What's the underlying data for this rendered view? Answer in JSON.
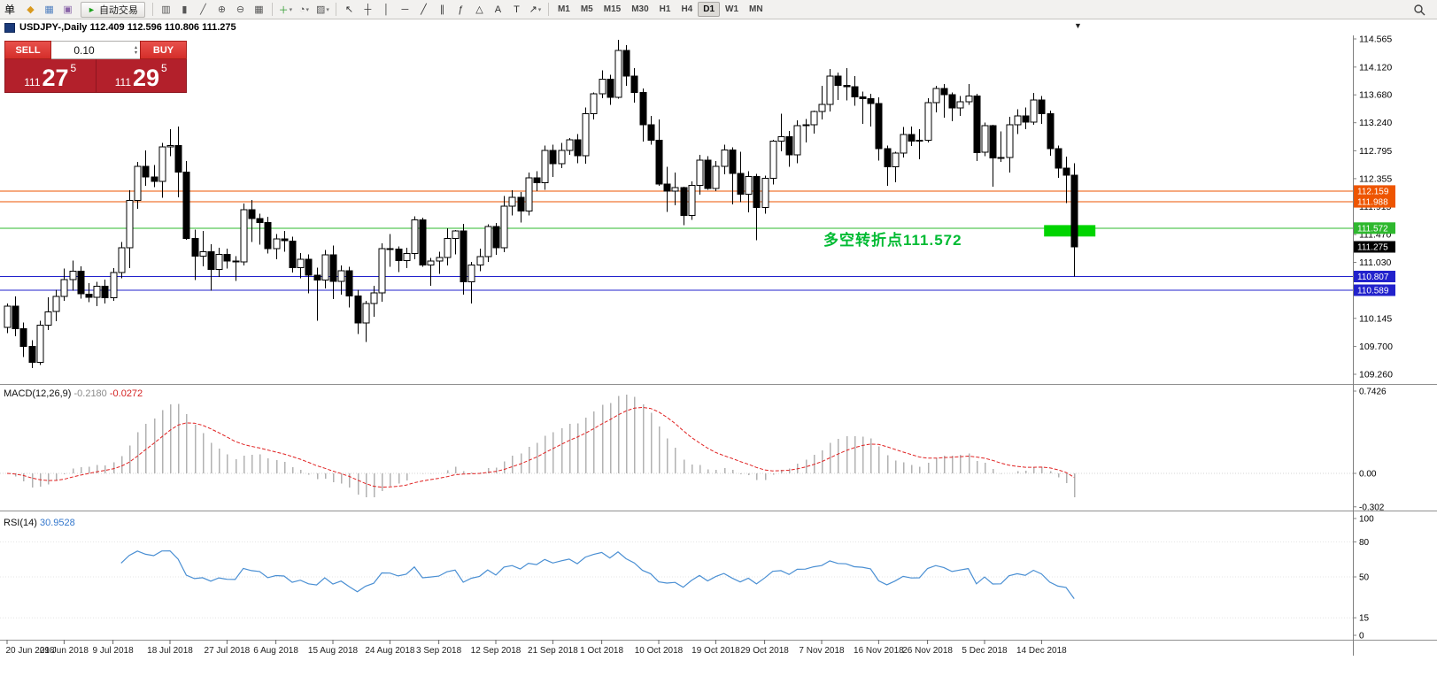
{
  "toolbar": {
    "menu_label": "单",
    "dropdown_glyph": "▾",
    "autotrading": {
      "label": "自动交易",
      "play_glyph": "►"
    },
    "icon_groups": [
      {
        "name": "file-group",
        "items": [
          {
            "name": "new-order-icon",
            "glyph": "◆",
            "color": "#d99a1f"
          },
          {
            "name": "charts-icon",
            "glyph": "▦",
            "color": "#4f7fbf"
          },
          {
            "name": "market-watch-icon",
            "glyph": "▣",
            "color": "#8a65a8"
          }
        ]
      },
      {
        "name": "chart-type-group",
        "items": [
          {
            "name": "bar-chart-icon",
            "glyph": "▥",
            "color": "#555555"
          },
          {
            "name": "candlestick-chart-icon",
            "glyph": "▮",
            "color": "#555555"
          },
          {
            "name": "line-chart-icon",
            "glyph": "╱",
            "color": "#555555"
          },
          {
            "name": "zoom-in-icon",
            "glyph": "⊕",
            "color": "#555555"
          },
          {
            "name": "zoom-out-icon",
            "glyph": "⊖",
            "color": "#555555"
          },
          {
            "name": "tile-windows-icon",
            "glyph": "▦",
            "color": "#555555"
          }
        ]
      },
      {
        "name": "chart-manage-group",
        "items": [
          {
            "name": "new-chart-icon",
            "glyph": "＋",
            "color": "#2c9c2c",
            "arrow": true
          },
          {
            "name": "periods-icon",
            "glyph": "◔",
            "color": "#555555",
            "arrow": true
          },
          {
            "name": "templates-icon",
            "glyph": "▨",
            "color": "#555555",
            "arrow": true
          }
        ]
      },
      {
        "name": "drawing-group",
        "items": [
          {
            "name": "cursor-icon",
            "glyph": "↖",
            "color": "#333333"
          },
          {
            "name": "crosshair-icon",
            "glyph": "┼",
            "color": "#333333"
          },
          {
            "name": "vertical-line-icon",
            "glyph": "│",
            "color": "#333333"
          },
          {
            "name": "horizontal-line-icon",
            "glyph": "─",
            "color": "#333333"
          },
          {
            "name": "trendline-icon",
            "glyph": "╱",
            "color": "#333333"
          },
          {
            "name": "channel-icon",
            "glyph": "∥",
            "color": "#333333"
          },
          {
            "name": "fibonacci-icon",
            "glyph": "ƒ",
            "color": "#333333"
          },
          {
            "name": "shapes-icon",
            "glyph": "△",
            "color": "#333333"
          },
          {
            "name": "text-icon",
            "glyph": "A",
            "color": "#333333"
          },
          {
            "name": "label-icon",
            "glyph": "T",
            "color": "#333333"
          },
          {
            "name": "arrows-icon",
            "glyph": "↗",
            "color": "#333333",
            "arrow": true
          }
        ]
      }
    ],
    "timeframes": {
      "options": [
        "M1",
        "M5",
        "M15",
        "M30",
        "H1",
        "H4",
        "D1",
        "W1",
        "MN"
      ],
      "active": "D1"
    }
  },
  "chart": {
    "title": "USDJPY-,Daily  112.409 112.596 110.806 111.275",
    "shift_marker": "▼"
  },
  "one_click": {
    "sell_label": "SELL",
    "buy_label": "BUY",
    "volume": "0.10",
    "spin_up": "▴",
    "spin_down": "▾",
    "bid": {
      "prefix": "111",
      "big": "27",
      "sup": "5"
    },
    "ask": {
      "prefix": "111",
      "big": "29",
      "sup": "5"
    }
  },
  "annotation": {
    "text": "多空转折点111.572",
    "color": "#00bb33"
  },
  "indicators": {
    "macd": {
      "name": "MACD(12,26,9)",
      "value_main": "-0.2180",
      "value_signal": "-0.0272"
    },
    "rsi": {
      "name": "RSI(14)",
      "value": "30.9528"
    }
  },
  "chart_data": {
    "type": "candlestick",
    "symbol": "USDJPY-",
    "timeframe": "Daily",
    "last_ohlc": {
      "open": 112.409,
      "high": 112.596,
      "low": 110.806,
      "close": 111.275
    },
    "y_ticks": [
      114.565,
      114.12,
      113.68,
      113.24,
      112.795,
      112.355,
      111.915,
      111.47,
      111.03,
      110.585,
      110.145,
      109.7,
      109.26
    ],
    "h_lines": [
      {
        "price": 112.159,
        "label": "112.159",
        "color": "#ee5500"
      },
      {
        "price": 111.988,
        "label": "111.988",
        "color": "#ee5500"
      },
      {
        "price": 111.572,
        "label": "111.572",
        "color": "#2eb82e"
      },
      {
        "price": 110.807,
        "label": "110.807",
        "color": "#2222cc"
      },
      {
        "price": 110.589,
        "label": "110.589",
        "color": "#2222cc"
      }
    ],
    "price_tags": [
      {
        "price": 112.159,
        "label": "112.159",
        "color": "#ee5500"
      },
      {
        "price": 111.988,
        "label": "111.988",
        "color": "#ee5500"
      },
      {
        "price": 111.572,
        "label": "111.572",
        "color": "#2eb82e"
      },
      {
        "price": 111.275,
        "label": "111.275",
        "color": "#000000"
      },
      {
        "price": 110.807,
        "label": "110.807",
        "color": "#2222cc"
      },
      {
        "price": 110.589,
        "label": "110.589",
        "color": "#2222cc"
      }
    ],
    "highlight_rect": {
      "bar_start": 127.3,
      "bar_end": 133.6,
      "price_top": 111.62,
      "price_bottom": 111.44,
      "color": "#00d400"
    },
    "date_labels": [
      {
        "label": "20 Jun 2018",
        "bar": 0
      },
      {
        "label": "29 Jun 2018",
        "bar": 7
      },
      {
        "label": "9 Jul 2018",
        "bar": 13
      },
      {
        "label": "18 Jul 2018",
        "bar": 20
      },
      {
        "label": "27 Jul 2018",
        "bar": 27
      },
      {
        "label": "6 Aug 2018",
        "bar": 33
      },
      {
        "label": "15 Aug 2018",
        "bar": 40
      },
      {
        "label": "24 Aug 2018",
        "bar": 47
      },
      {
        "label": "3 Sep 2018",
        "bar": 53
      },
      {
        "label": "12 Sep 2018",
        "bar": 60
      },
      {
        "label": "21 Sep 2018",
        "bar": 67
      },
      {
        "label": "1 Oct 2018",
        "bar": 73
      },
      {
        "label": "10 Oct 2018",
        "bar": 80
      },
      {
        "label": "19 Oct 2018",
        "bar": 87
      },
      {
        "label": "29 Oct 2018",
        "bar": 93
      },
      {
        "label": "7 Nov 2018",
        "bar": 100
      },
      {
        "label": "16 Nov 2018",
        "bar": 107
      },
      {
        "label": "26 Nov 2018",
        "bar": 113
      },
      {
        "label": "5 Dec 2018",
        "bar": 120
      },
      {
        "label": "14 Dec 2018",
        "bar": 127
      }
    ],
    "macd_axis": [
      {
        "v": 0.7426,
        "label": "0.7426"
      },
      {
        "v": 0,
        "label": "0.00"
      },
      {
        "v": -0.302,
        "label": "-0.302"
      }
    ],
    "rsi_axis": [
      {
        "v": 100,
        "label": "100"
      },
      {
        "v": 80,
        "label": "80"
      },
      {
        "v": 50,
        "label": "50"
      },
      {
        "v": 15,
        "label": "15"
      },
      {
        "v": 0,
        "label": "0"
      }
    ],
    "rsi_levels": [
      80,
      50,
      15
    ],
    "candles": [
      [
        110.0,
        110.38,
        109.91,
        110.34
      ],
      [
        110.34,
        110.49,
        109.86,
        109.98
      ],
      [
        109.98,
        110.08,
        109.53,
        109.7
      ],
      [
        109.7,
        109.8,
        109.36,
        109.45
      ],
      [
        109.45,
        110.11,
        109.41,
        110.04
      ],
      [
        110.04,
        110.48,
        109.96,
        110.25
      ],
      [
        110.25,
        110.6,
        110.1,
        110.49
      ],
      [
        110.49,
        110.93,
        110.42,
        110.76
      ],
      [
        110.76,
        111.06,
        110.58,
        110.89
      ],
      [
        110.89,
        110.97,
        110.46,
        110.53
      ],
      [
        110.53,
        110.7,
        110.4,
        110.48
      ],
      [
        110.48,
        110.72,
        110.34,
        110.65
      ],
      [
        110.65,
        110.76,
        110.38,
        110.47
      ],
      [
        110.47,
        110.94,
        110.42,
        110.87
      ],
      [
        110.87,
        111.35,
        110.78,
        111.26
      ],
      [
        111.26,
        112.17,
        110.94,
        112.01
      ],
      [
        112.01,
        112.62,
        111.88,
        112.55
      ],
      [
        112.55,
        112.8,
        112.24,
        112.38
      ],
      [
        112.38,
        112.57,
        112.22,
        112.31
      ],
      [
        112.31,
        112.92,
        112.05,
        112.86
      ],
      [
        112.86,
        113.14,
        112.71,
        112.88
      ],
      [
        112.88,
        113.18,
        112.06,
        112.46
      ],
      [
        112.46,
        112.63,
        111.39,
        111.41
      ],
      [
        111.41,
        111.55,
        110.75,
        111.13
      ],
      [
        111.13,
        111.53,
        110.97,
        111.2
      ],
      [
        111.2,
        111.32,
        110.58,
        110.92
      ],
      [
        110.92,
        111.26,
        110.8,
        111.16
      ],
      [
        111.16,
        111.25,
        110.93,
        111.05
      ],
      [
        111.05,
        111.13,
        110.74,
        111.04
      ],
      [
        111.04,
        111.96,
        110.98,
        111.86
      ],
      [
        111.86,
        112.02,
        111.35,
        111.72
      ],
      [
        111.72,
        111.8,
        111.31,
        111.66
      ],
      [
        111.66,
        111.75,
        111.17,
        111.25
      ],
      [
        111.25,
        111.48,
        111.08,
        111.4
      ],
      [
        111.4,
        111.53,
        111.2,
        111.37
      ],
      [
        111.37,
        111.44,
        110.87,
        110.95
      ],
      [
        110.95,
        111.18,
        110.78,
        111.08
      ],
      [
        111.08,
        111.16,
        110.54,
        110.83
      ],
      [
        110.83,
        110.95,
        110.11,
        110.75
      ],
      [
        110.75,
        111.23,
        110.62,
        111.15
      ],
      [
        111.15,
        111.3,
        110.45,
        110.73
      ],
      [
        110.73,
        110.98,
        110.52,
        110.9
      ],
      [
        110.9,
        110.96,
        110.32,
        110.5
      ],
      [
        110.5,
        110.6,
        109.9,
        110.07
      ],
      [
        110.07,
        110.42,
        109.77,
        110.38
      ],
      [
        110.38,
        110.66,
        110.17,
        110.55
      ],
      [
        110.55,
        111.33,
        110.41,
        111.25
      ],
      [
        111.25,
        111.48,
        110.96,
        111.24
      ],
      [
        111.24,
        111.28,
        110.88,
        111.06
      ],
      [
        111.06,
        111.26,
        110.94,
        111.17
      ],
      [
        111.17,
        111.76,
        111.08,
        111.7
      ],
      [
        111.7,
        111.74,
        110.96,
        110.99
      ],
      [
        110.99,
        111.1,
        110.66,
        111.05
      ],
      [
        111.05,
        111.2,
        110.85,
        111.11
      ],
      [
        111.11,
        111.57,
        110.98,
        111.41
      ],
      [
        111.41,
        111.54,
        111.16,
        111.53
      ],
      [
        111.53,
        111.64,
        110.52,
        110.72
      ],
      [
        110.72,
        111.04,
        110.38,
        110.99
      ],
      [
        110.99,
        111.25,
        110.89,
        111.12
      ],
      [
        111.12,
        111.63,
        111.04,
        111.6
      ],
      [
        111.6,
        111.65,
        111.15,
        111.26
      ],
      [
        111.26,
        112.08,
        111.19,
        111.92
      ],
      [
        111.92,
        112.17,
        111.77,
        112.06
      ],
      [
        112.06,
        112.14,
        111.66,
        111.84
      ],
      [
        111.84,
        112.45,
        111.77,
        112.37
      ],
      [
        112.37,
        112.47,
        112.16,
        112.29
      ],
      [
        112.29,
        112.88,
        112.18,
        112.8
      ],
      [
        112.8,
        112.89,
        112.38,
        112.59
      ],
      [
        112.59,
        112.92,
        112.52,
        112.8
      ],
      [
        112.8,
        113.0,
        112.73,
        112.97
      ],
      [
        112.97,
        113.06,
        112.6,
        112.72
      ],
      [
        112.72,
        113.48,
        112.59,
        113.38
      ],
      [
        113.38,
        113.72,
        113.29,
        113.7
      ],
      [
        113.7,
        114.07,
        113.63,
        113.93
      ],
      [
        113.93,
        114.0,
        113.52,
        113.64
      ],
      [
        113.64,
        114.55,
        113.62,
        114.38
      ],
      [
        114.38,
        114.47,
        113.82,
        113.98
      ],
      [
        113.98,
        114.1,
        113.56,
        113.72
      ],
      [
        113.72,
        113.78,
        112.94,
        113.21
      ],
      [
        113.21,
        113.35,
        112.89,
        112.96
      ],
      [
        112.96,
        113.29,
        112.24,
        112.27
      ],
      [
        112.27,
        112.54,
        111.83,
        112.16
      ],
      [
        112.16,
        112.45,
        111.93,
        112.21
      ],
      [
        112.21,
        112.23,
        111.62,
        111.77
      ],
      [
        111.77,
        112.31,
        111.7,
        112.25
      ],
      [
        112.25,
        112.73,
        112.1,
        112.65
      ],
      [
        112.65,
        112.71,
        112.18,
        112.2
      ],
      [
        112.2,
        112.63,
        112.16,
        112.55
      ],
      [
        112.55,
        112.89,
        112.42,
        112.81
      ],
      [
        112.81,
        112.85,
        111.95,
        112.44
      ],
      [
        112.44,
        112.78,
        111.98,
        112.11
      ],
      [
        112.11,
        112.47,
        111.82,
        112.39
      ],
      [
        112.39,
        112.43,
        111.38,
        111.9
      ],
      [
        111.9,
        112.4,
        111.8,
        112.36
      ],
      [
        112.36,
        112.97,
        112.26,
        112.95
      ],
      [
        112.95,
        113.38,
        112.79,
        113.02
      ],
      [
        113.02,
        113.11,
        112.54,
        112.73
      ],
      [
        112.73,
        113.28,
        112.6,
        113.19
      ],
      [
        113.19,
        113.3,
        112.93,
        113.21
      ],
      [
        113.21,
        113.43,
        113.07,
        113.42
      ],
      [
        113.42,
        113.82,
        113.29,
        113.53
      ],
      [
        113.53,
        114.09,
        113.42,
        113.98
      ],
      [
        113.98,
        114.03,
        113.6,
        113.83
      ],
      [
        113.83,
        114.1,
        113.59,
        113.81
      ],
      [
        113.81,
        113.98,
        113.51,
        113.65
      ],
      [
        113.65,
        113.73,
        113.22,
        113.62
      ],
      [
        113.62,
        113.7,
        113.18,
        113.54
      ],
      [
        113.54,
        113.64,
        112.64,
        112.83
      ],
      [
        112.83,
        112.88,
        112.24,
        112.54
      ],
      [
        112.54,
        112.78,
        112.3,
        112.76
      ],
      [
        112.76,
        113.17,
        112.69,
        113.05
      ],
      [
        113.05,
        113.18,
        112.87,
        112.95
      ],
      [
        112.95,
        113.14,
        112.66,
        112.96
      ],
      [
        112.96,
        113.63,
        112.93,
        113.56
      ],
      [
        113.56,
        113.82,
        113.4,
        113.78
      ],
      [
        113.78,
        113.85,
        113.32,
        113.68
      ],
      [
        113.68,
        113.72,
        113.26,
        113.47
      ],
      [
        113.47,
        113.66,
        113.35,
        113.57
      ],
      [
        113.57,
        113.85,
        113.52,
        113.66
      ],
      [
        113.66,
        113.7,
        112.63,
        112.77
      ],
      [
        112.77,
        113.24,
        112.71,
        113.19
      ],
      [
        113.19,
        113.21,
        112.23,
        112.68
      ],
      [
        112.68,
        113.1,
        112.62,
        112.69
      ],
      [
        112.69,
        113.33,
        112.45,
        113.21
      ],
      [
        113.21,
        113.45,
        113.06,
        113.35
      ],
      [
        113.35,
        113.48,
        113.14,
        113.25
      ],
      [
        113.25,
        113.71,
        113.21,
        113.6
      ],
      [
        113.6,
        113.66,
        113.22,
        113.38
      ],
      [
        113.38,
        113.43,
        112.72,
        112.83
      ],
      [
        112.83,
        112.88,
        112.37,
        112.52
      ],
      [
        112.52,
        112.7,
        111.97,
        112.41
      ],
      [
        112.409,
        112.596,
        110.806,
        111.275
      ]
    ]
  }
}
